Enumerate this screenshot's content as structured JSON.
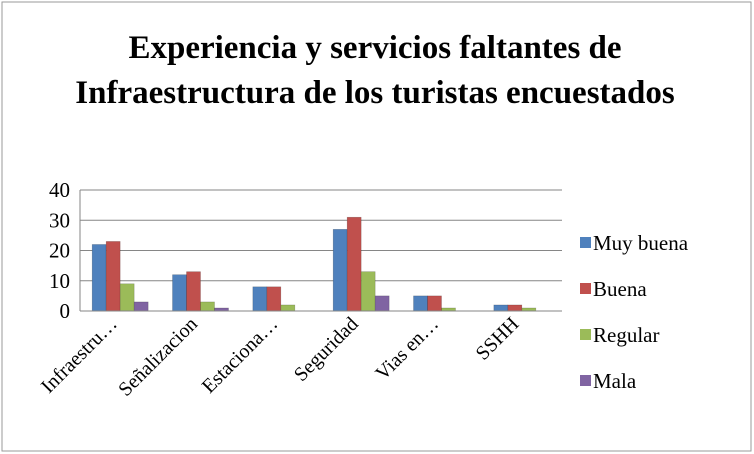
{
  "chart_data": {
    "type": "bar",
    "title": "Experiencia y servicios faltantes de Infraestructura de los turistas encuestados",
    "categories": [
      "Infraestru…",
      "Señalizacion",
      "Estaciona…",
      "Seguridad",
      "Vias en…",
      "SSHH"
    ],
    "series": [
      {
        "name": "Muy buena",
        "color": "#4f81bd",
        "values": [
          22,
          12,
          8,
          27,
          5,
          2
        ]
      },
      {
        "name": "Buena",
        "color": "#c0504d",
        "values": [
          23,
          13,
          8,
          31,
          5,
          2
        ]
      },
      {
        "name": "Regular",
        "color": "#9bbb59",
        "values": [
          9,
          3,
          2,
          13,
          1,
          1
        ]
      },
      {
        "name": "Mala",
        "color": "#8064a2",
        "values": [
          3,
          1,
          0,
          5,
          0,
          0
        ]
      }
    ],
    "ylim": [
      0,
      40
    ],
    "yticks": [
      0,
      10,
      20,
      30,
      40
    ],
    "grid": true,
    "legend": "right"
  }
}
